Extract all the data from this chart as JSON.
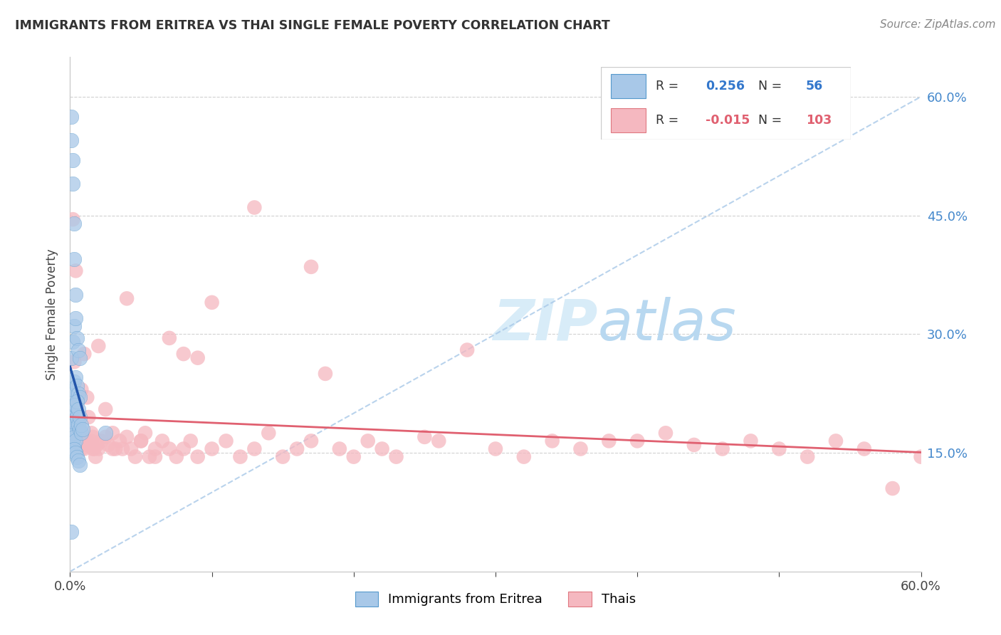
{
  "title": "IMMIGRANTS FROM ERITREA VS THAI SINGLE FEMALE POVERTY CORRELATION CHART",
  "source": "Source: ZipAtlas.com",
  "ylabel_left": "Single Female Poverty",
  "x_min": 0.0,
  "x_max": 0.6,
  "y_min": 0.0,
  "y_max": 0.65,
  "blue_r": "0.256",
  "blue_n": "56",
  "pink_r": "-0.015",
  "pink_n": "103",
  "blue_color": "#a8c8e8",
  "blue_edge_color": "#5599cc",
  "blue_line_color": "#2255aa",
  "pink_color": "#f5b8c0",
  "pink_edge_color": "#e07880",
  "pink_line_color": "#e06070",
  "diag_color": "#a8c8e8",
  "grid_color": "#cccccc",
  "right_yticks": [
    0.15,
    0.3,
    0.45,
    0.6
  ],
  "right_yticklabels": [
    "15.0%",
    "30.0%",
    "45.0%",
    "60.0%"
  ],
  "blue_scatter_x": [
    0.001,
    0.001,
    0.002,
    0.002,
    0.003,
    0.003,
    0.004,
    0.001,
    0.001,
    0.002,
    0.002,
    0.003,
    0.003,
    0.004,
    0.001,
    0.001,
    0.002,
    0.002,
    0.003,
    0.003,
    0.004,
    0.001,
    0.002,
    0.003,
    0.004,
    0.005,
    0.006,
    0.007,
    0.001,
    0.002,
    0.003,
    0.004,
    0.005,
    0.006,
    0.007,
    0.002,
    0.003,
    0.004,
    0.005,
    0.006,
    0.007,
    0.008,
    0.003,
    0.004,
    0.005,
    0.006,
    0.007,
    0.008,
    0.009,
    0.003,
    0.004,
    0.005,
    0.006,
    0.007,
    0.025,
    0.001
  ],
  "blue_scatter_y": [
    0.575,
    0.545,
    0.52,
    0.49,
    0.44,
    0.395,
    0.35,
    0.175,
    0.16,
    0.17,
    0.165,
    0.16,
    0.155,
    0.15,
    0.195,
    0.185,
    0.195,
    0.18,
    0.175,
    0.17,
    0.165,
    0.27,
    0.29,
    0.31,
    0.32,
    0.295,
    0.28,
    0.27,
    0.225,
    0.23,
    0.24,
    0.245,
    0.235,
    0.225,
    0.22,
    0.19,
    0.2,
    0.205,
    0.195,
    0.185,
    0.18,
    0.175,
    0.21,
    0.21,
    0.215,
    0.205,
    0.195,
    0.185,
    0.18,
    0.155,
    0.15,
    0.145,
    0.14,
    0.135,
    0.175,
    0.05
  ],
  "pink_scatter_x": [
    0.001,
    0.001,
    0.002,
    0.002,
    0.003,
    0.003,
    0.004,
    0.004,
    0.005,
    0.005,
    0.006,
    0.006,
    0.007,
    0.007,
    0.008,
    0.008,
    0.009,
    0.01,
    0.01,
    0.012,
    0.013,
    0.015,
    0.015,
    0.016,
    0.017,
    0.018,
    0.019,
    0.02,
    0.022,
    0.025,
    0.027,
    0.03,
    0.032,
    0.035,
    0.037,
    0.04,
    0.043,
    0.046,
    0.05,
    0.053,
    0.056,
    0.06,
    0.065,
    0.07,
    0.075,
    0.08,
    0.085,
    0.09,
    0.1,
    0.11,
    0.12,
    0.13,
    0.14,
    0.15,
    0.16,
    0.17,
    0.18,
    0.19,
    0.2,
    0.21,
    0.22,
    0.23,
    0.25,
    0.26,
    0.28,
    0.3,
    0.32,
    0.34,
    0.36,
    0.38,
    0.4,
    0.42,
    0.44,
    0.46,
    0.48,
    0.5,
    0.52,
    0.54,
    0.56,
    0.58,
    0.6,
    0.003,
    0.005,
    0.007,
    0.01,
    0.013,
    0.016,
    0.02,
    0.025,
    0.03,
    0.04,
    0.05,
    0.06,
    0.07,
    0.08,
    0.09,
    0.1,
    0.13,
    0.17,
    0.002,
    0.004,
    0.008,
    0.012
  ],
  "pink_scatter_y": [
    0.2,
    0.185,
    0.195,
    0.18,
    0.19,
    0.175,
    0.185,
    0.175,
    0.185,
    0.175,
    0.18,
    0.165,
    0.175,
    0.16,
    0.17,
    0.155,
    0.16,
    0.165,
    0.155,
    0.165,
    0.16,
    0.175,
    0.165,
    0.17,
    0.155,
    0.145,
    0.16,
    0.155,
    0.165,
    0.17,
    0.16,
    0.175,
    0.155,
    0.165,
    0.155,
    0.17,
    0.155,
    0.145,
    0.165,
    0.175,
    0.145,
    0.155,
    0.165,
    0.155,
    0.145,
    0.155,
    0.165,
    0.145,
    0.155,
    0.165,
    0.145,
    0.155,
    0.175,
    0.145,
    0.155,
    0.165,
    0.25,
    0.155,
    0.145,
    0.165,
    0.155,
    0.145,
    0.17,
    0.165,
    0.28,
    0.155,
    0.145,
    0.165,
    0.155,
    0.165,
    0.165,
    0.175,
    0.16,
    0.155,
    0.165,
    0.155,
    0.145,
    0.165,
    0.155,
    0.105,
    0.145,
    0.265,
    0.21,
    0.16,
    0.275,
    0.195,
    0.155,
    0.285,
    0.205,
    0.155,
    0.345,
    0.165,
    0.145,
    0.295,
    0.275,
    0.27,
    0.34,
    0.46,
    0.385,
    0.445,
    0.38,
    0.23,
    0.22
  ]
}
